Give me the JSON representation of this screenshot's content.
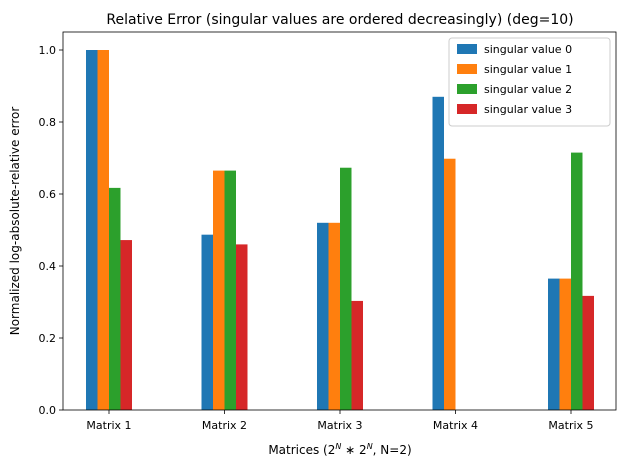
{
  "chart_data": {
    "type": "bar",
    "title": "Relative Error (singular values are ordered decreasingly) (deg=10)",
    "xlabel": "Matrices (2^N * 2^N, N=2)",
    "xlabel_parts": {
      "prefix": "Matrices (2",
      "sup1": "N",
      "mid": " ∗ 2",
      "sup2": "N",
      "suffix": ", N=2)"
    },
    "ylabel": "Normalized log-absolute-relative error",
    "ylim": [
      0,
      1.05
    ],
    "yticks": [
      "0.0",
      "0.2",
      "0.4",
      "0.6",
      "0.8",
      "1.0"
    ],
    "categories": [
      "Matrix 1",
      "Matrix 2",
      "Matrix 3",
      "Matrix 4",
      "Matrix 5"
    ],
    "series": [
      {
        "name": "singular value 0",
        "color": "#1f77b4",
        "values": [
          1.0,
          0.487,
          0.52,
          0.87,
          0.365
        ]
      },
      {
        "name": "singular value 1",
        "color": "#ff7f0e",
        "values": [
          1.0,
          0.665,
          0.52,
          0.698,
          0.365
        ]
      },
      {
        "name": "singular value 2",
        "color": "#2ca02c",
        "values": [
          0.617,
          0.665,
          0.673,
          0.0,
          0.715
        ]
      },
      {
        "name": "singular value 3",
        "color": "#d62728",
        "values": [
          0.472,
          0.46,
          0.303,
          0.0,
          0.317
        ]
      }
    ],
    "legend_position": "top-right",
    "grid": false
  }
}
